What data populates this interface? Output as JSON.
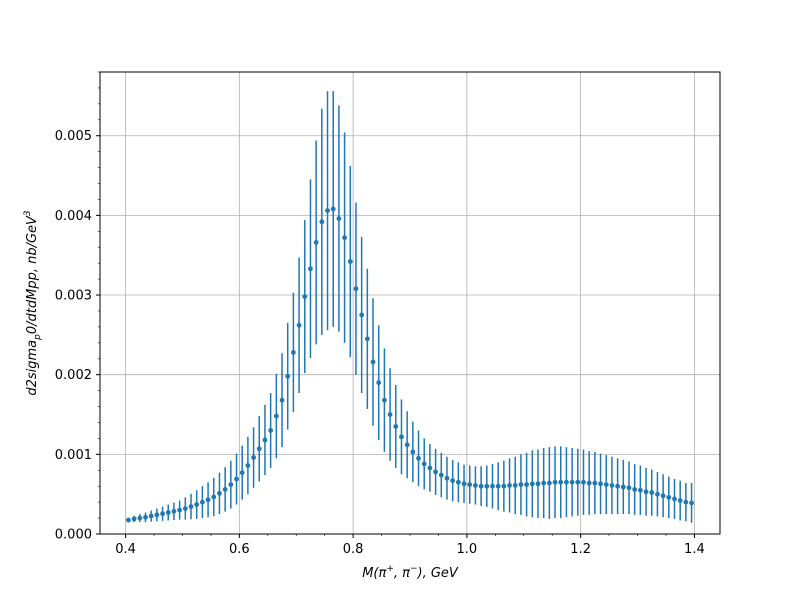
{
  "chart_data": {
    "type": "scatter",
    "title": "",
    "xlabel": "M(π⁺, π⁻), GeV",
    "ylabel": "d2sigma_p0/dtdMpp, nb/GeV³",
    "ylabel_parts": {
      "main": "d2sigma",
      "sub": "p",
      "rest": "0/dtdMpp, nb/GeV",
      "sup": "3"
    },
    "xlabel_parts": {
      "pre": "M(π",
      "sup1": "+",
      "mid": ", π",
      "sup2": "−",
      "post": "), GeV"
    },
    "xlim": [
      0.355,
      1.445
    ],
    "ylim": [
      0.0,
      0.0058
    ],
    "xticks": [
      0.4,
      0.6,
      0.8,
      1.0,
      1.2,
      1.4
    ],
    "xtick_labels": [
      "0.4",
      "0.6",
      "0.8",
      "1.0",
      "1.2",
      "1.4"
    ],
    "yticks": [
      0.0,
      0.001,
      0.002,
      0.003,
      0.004,
      0.005
    ],
    "ytick_labels": [
      "0.000",
      "0.001",
      "0.002",
      "0.003",
      "0.004",
      "0.005"
    ],
    "grid": true,
    "color": "#1f77b4",
    "series": [
      {
        "x": [
          0.405,
          0.415,
          0.425,
          0.435,
          0.445,
          0.455,
          0.465,
          0.475,
          0.485,
          0.495,
          0.505,
          0.515,
          0.525,
          0.535,
          0.545,
          0.555,
          0.565,
          0.575,
          0.585,
          0.595,
          0.605,
          0.615,
          0.625,
          0.635,
          0.645,
          0.655,
          0.665,
          0.675,
          0.685,
          0.695,
          0.705,
          0.715,
          0.725,
          0.735,
          0.745,
          0.755,
          0.765,
          0.775,
          0.785,
          0.795,
          0.805,
          0.815,
          0.825,
          0.835,
          0.845,
          0.855,
          0.865,
          0.875,
          0.885,
          0.895,
          0.905,
          0.915,
          0.925,
          0.935,
          0.945,
          0.955,
          0.965,
          0.975,
          0.985,
          0.995,
          1.005,
          1.015,
          1.025,
          1.035,
          1.045,
          1.055,
          1.065,
          1.075,
          1.085,
          1.095,
          1.105,
          1.115,
          1.125,
          1.135,
          1.145,
          1.155,
          1.165,
          1.175,
          1.185,
          1.195,
          1.205,
          1.215,
          1.225,
          1.235,
          1.245,
          1.255,
          1.265,
          1.275,
          1.285,
          1.295,
          1.305,
          1.315,
          1.325,
          1.335,
          1.345,
          1.355,
          1.365,
          1.375,
          1.385,
          1.395
        ],
        "y": [
          0.000175,
          0.00019,
          0.0002,
          0.00021,
          0.000225,
          0.00024,
          0.000255,
          0.00027,
          0.000285,
          0.0003,
          0.00032,
          0.000345,
          0.00037,
          0.0004,
          0.00043,
          0.000465,
          0.00051,
          0.00056,
          0.00062,
          0.00069,
          0.00077,
          0.00086,
          0.00096,
          0.00107,
          0.00118,
          0.0013,
          0.00148,
          0.00168,
          0.00198,
          0.00228,
          0.00262,
          0.00298,
          0.00333,
          0.00366,
          0.00392,
          0.00406,
          0.00408,
          0.00396,
          0.00372,
          0.00342,
          0.00308,
          0.00275,
          0.00245,
          0.00216,
          0.0019,
          0.00168,
          0.0015,
          0.00135,
          0.00122,
          0.00112,
          0.00103,
          0.00095,
          0.00088,
          0.00083,
          0.00078,
          0.00074,
          0.0007,
          0.00067,
          0.00065,
          0.00063,
          0.00062,
          0.00061,
          0.0006,
          0.0006,
          0.0006,
          0.0006,
          0.0006,
          0.00061,
          0.00061,
          0.00062,
          0.00062,
          0.00063,
          0.00063,
          0.00064,
          0.00064,
          0.00065,
          0.00065,
          0.00065,
          0.00065,
          0.00065,
          0.00065,
          0.00064,
          0.00064,
          0.00063,
          0.00062,
          0.00061,
          0.0006,
          0.00059,
          0.00058,
          0.00056,
          0.00055,
          0.00053,
          0.00052,
          0.0005,
          0.00048,
          0.00046,
          0.00044,
          0.00042,
          0.0004,
          0.00039
        ],
        "err": [
          3e-05,
          4e-05,
          5e-05,
          6e-05,
          7e-05,
          8e-05,
          9e-05,
          0.0001,
          0.00011,
          0.00012,
          0.00014,
          0.00016,
          0.00018,
          0.0002,
          0.00022,
          0.00024,
          0.00026,
          0.00028,
          0.0003,
          0.00032,
          0.00034,
          0.00036,
          0.00038,
          0.00041,
          0.00044,
          0.00047,
          0.00053,
          0.00059,
          0.00067,
          0.00075,
          0.00085,
          0.00096,
          0.00112,
          0.00128,
          0.00142,
          0.0015,
          0.00148,
          0.00142,
          0.00132,
          0.0012,
          0.00108,
          0.00098,
          0.00088,
          0.0008,
          0.00072,
          0.00065,
          0.00058,
          0.00052,
          0.00047,
          0.00042,
          0.00038,
          0.00035,
          0.00032,
          0.0003,
          0.00029,
          0.00028,
          0.00027,
          0.00026,
          0.00025,
          0.00024,
          0.00024,
          0.00024,
          0.00025,
          0.00026,
          0.00028,
          0.0003,
          0.00032,
          0.00034,
          0.00036,
          0.00038,
          0.0004,
          0.00042,
          0.00043,
          0.00044,
          0.00045,
          0.00045,
          0.00045,
          0.00044,
          0.00043,
          0.00042,
          0.00041,
          0.0004,
          0.00039,
          0.00038,
          0.00037,
          0.00036,
          0.00035,
          0.00034,
          0.00033,
          0.00032,
          0.00031,
          0.0003,
          0.00029,
          0.00028,
          0.00027,
          0.00026,
          0.00025,
          0.00025,
          0.00024,
          0.00025
        ]
      }
    ]
  }
}
